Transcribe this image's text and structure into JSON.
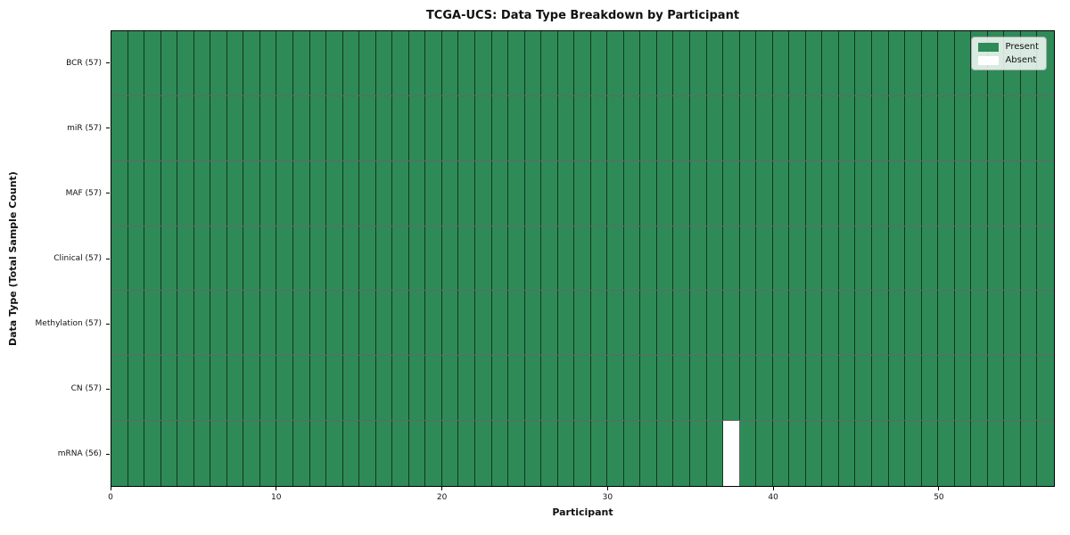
{
  "chart_data": {
    "type": "heatmap",
    "title": "TCGA-UCS: Data Type Breakdown by Participant",
    "xlabel": "Participant",
    "ylabel": "Data Type (Total Sample Count)",
    "n_participants": 57,
    "x_ticks": [
      0,
      10,
      20,
      30,
      40,
      50
    ],
    "rows": [
      {
        "label": "BCR (57)",
        "total": 57,
        "absent_participants": []
      },
      {
        "label": "miR (57)",
        "total": 57,
        "absent_participants": []
      },
      {
        "label": "MAF (57)",
        "total": 57,
        "absent_participants": []
      },
      {
        "label": "Clinical (57)",
        "total": 57,
        "absent_participants": []
      },
      {
        "label": "Methylation (57)",
        "total": 57,
        "absent_participants": []
      },
      {
        "label": "CN (57)",
        "total": 57,
        "absent_participants": []
      },
      {
        "label": "mRNA (56)",
        "total": 56,
        "absent_participants": [
          37
        ]
      }
    ],
    "legend": {
      "position": "upper right",
      "entries": [
        {
          "label": "Present",
          "color": "#2e8b57"
        },
        {
          "label": "Absent",
          "color": "#ffffff"
        }
      ]
    },
    "colors": {
      "present": "#2e8b57",
      "absent": "#ffffff",
      "cell_edge": "rgba(0,0,0,0.60)",
      "axis": "#000000"
    },
    "grid": true
  }
}
